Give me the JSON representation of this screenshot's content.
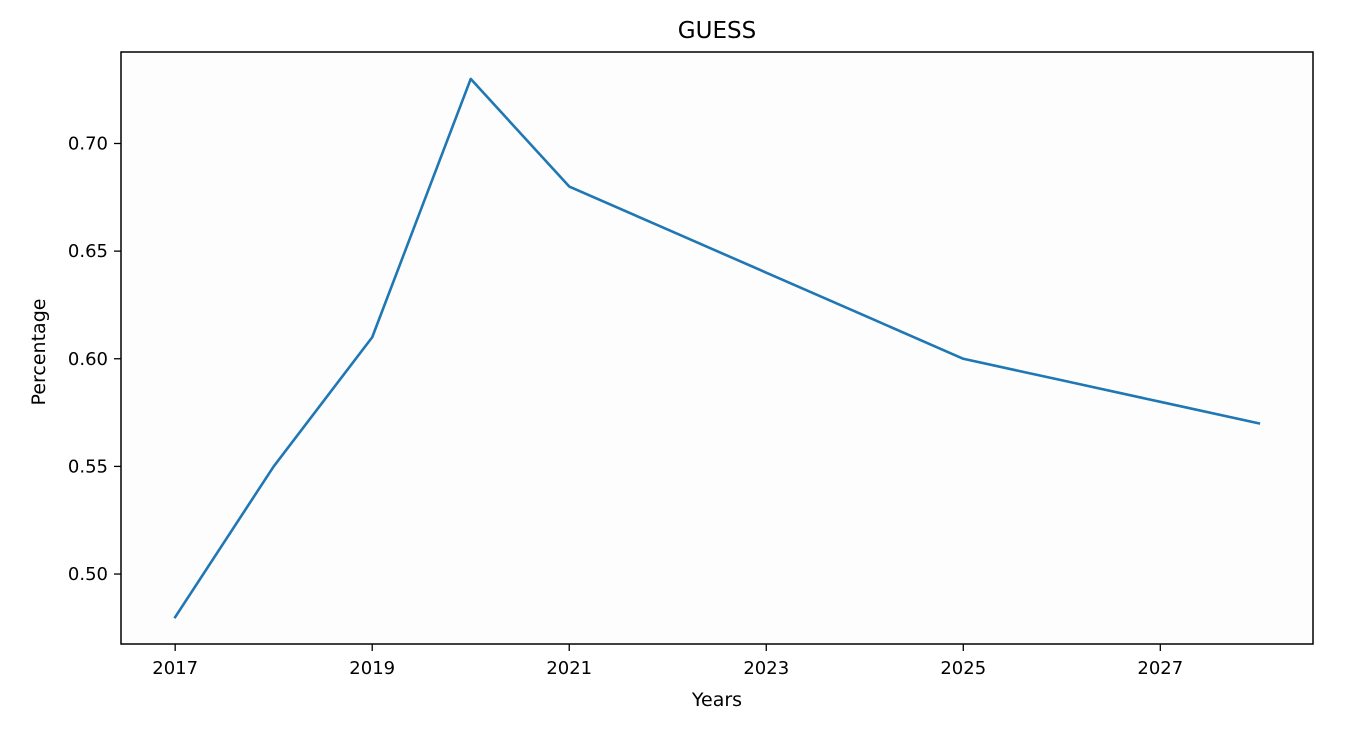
{
  "chart_data": {
    "type": "line",
    "title": "GUESS",
    "xlabel": "Years",
    "ylabel": "Percentage",
    "x": [
      2017,
      2018,
      2019,
      2020,
      2021,
      2022,
      2023,
      2024,
      2025,
      2026,
      2027,
      2028
    ],
    "series": [
      {
        "values": [
          0.48,
          0.55,
          0.61,
          0.73,
          0.68,
          0.66,
          0.64,
          0.62,
          0.6,
          0.59,
          0.58,
          0.57
        ],
        "color": "#1f77b4"
      }
    ],
    "xticks": [
      2017,
      2019,
      2021,
      2023,
      2025,
      2027
    ],
    "xtick_labels": [
      "2017",
      "2019",
      "2021",
      "2023",
      "2025",
      "2027"
    ],
    "yticks": [
      0.5,
      0.55,
      0.6,
      0.65,
      0.7
    ],
    "ytick_labels": [
      "0.50",
      "0.55",
      "0.60",
      "0.65",
      "0.70"
    ],
    "xlim": [
      2016.45,
      2028.55
    ],
    "ylim": [
      0.4675,
      0.7425
    ],
    "grid": false,
    "legend": "none",
    "colors": {
      "axes_background": "#fdfdfd",
      "axes_edge": "#000000"
    }
  }
}
